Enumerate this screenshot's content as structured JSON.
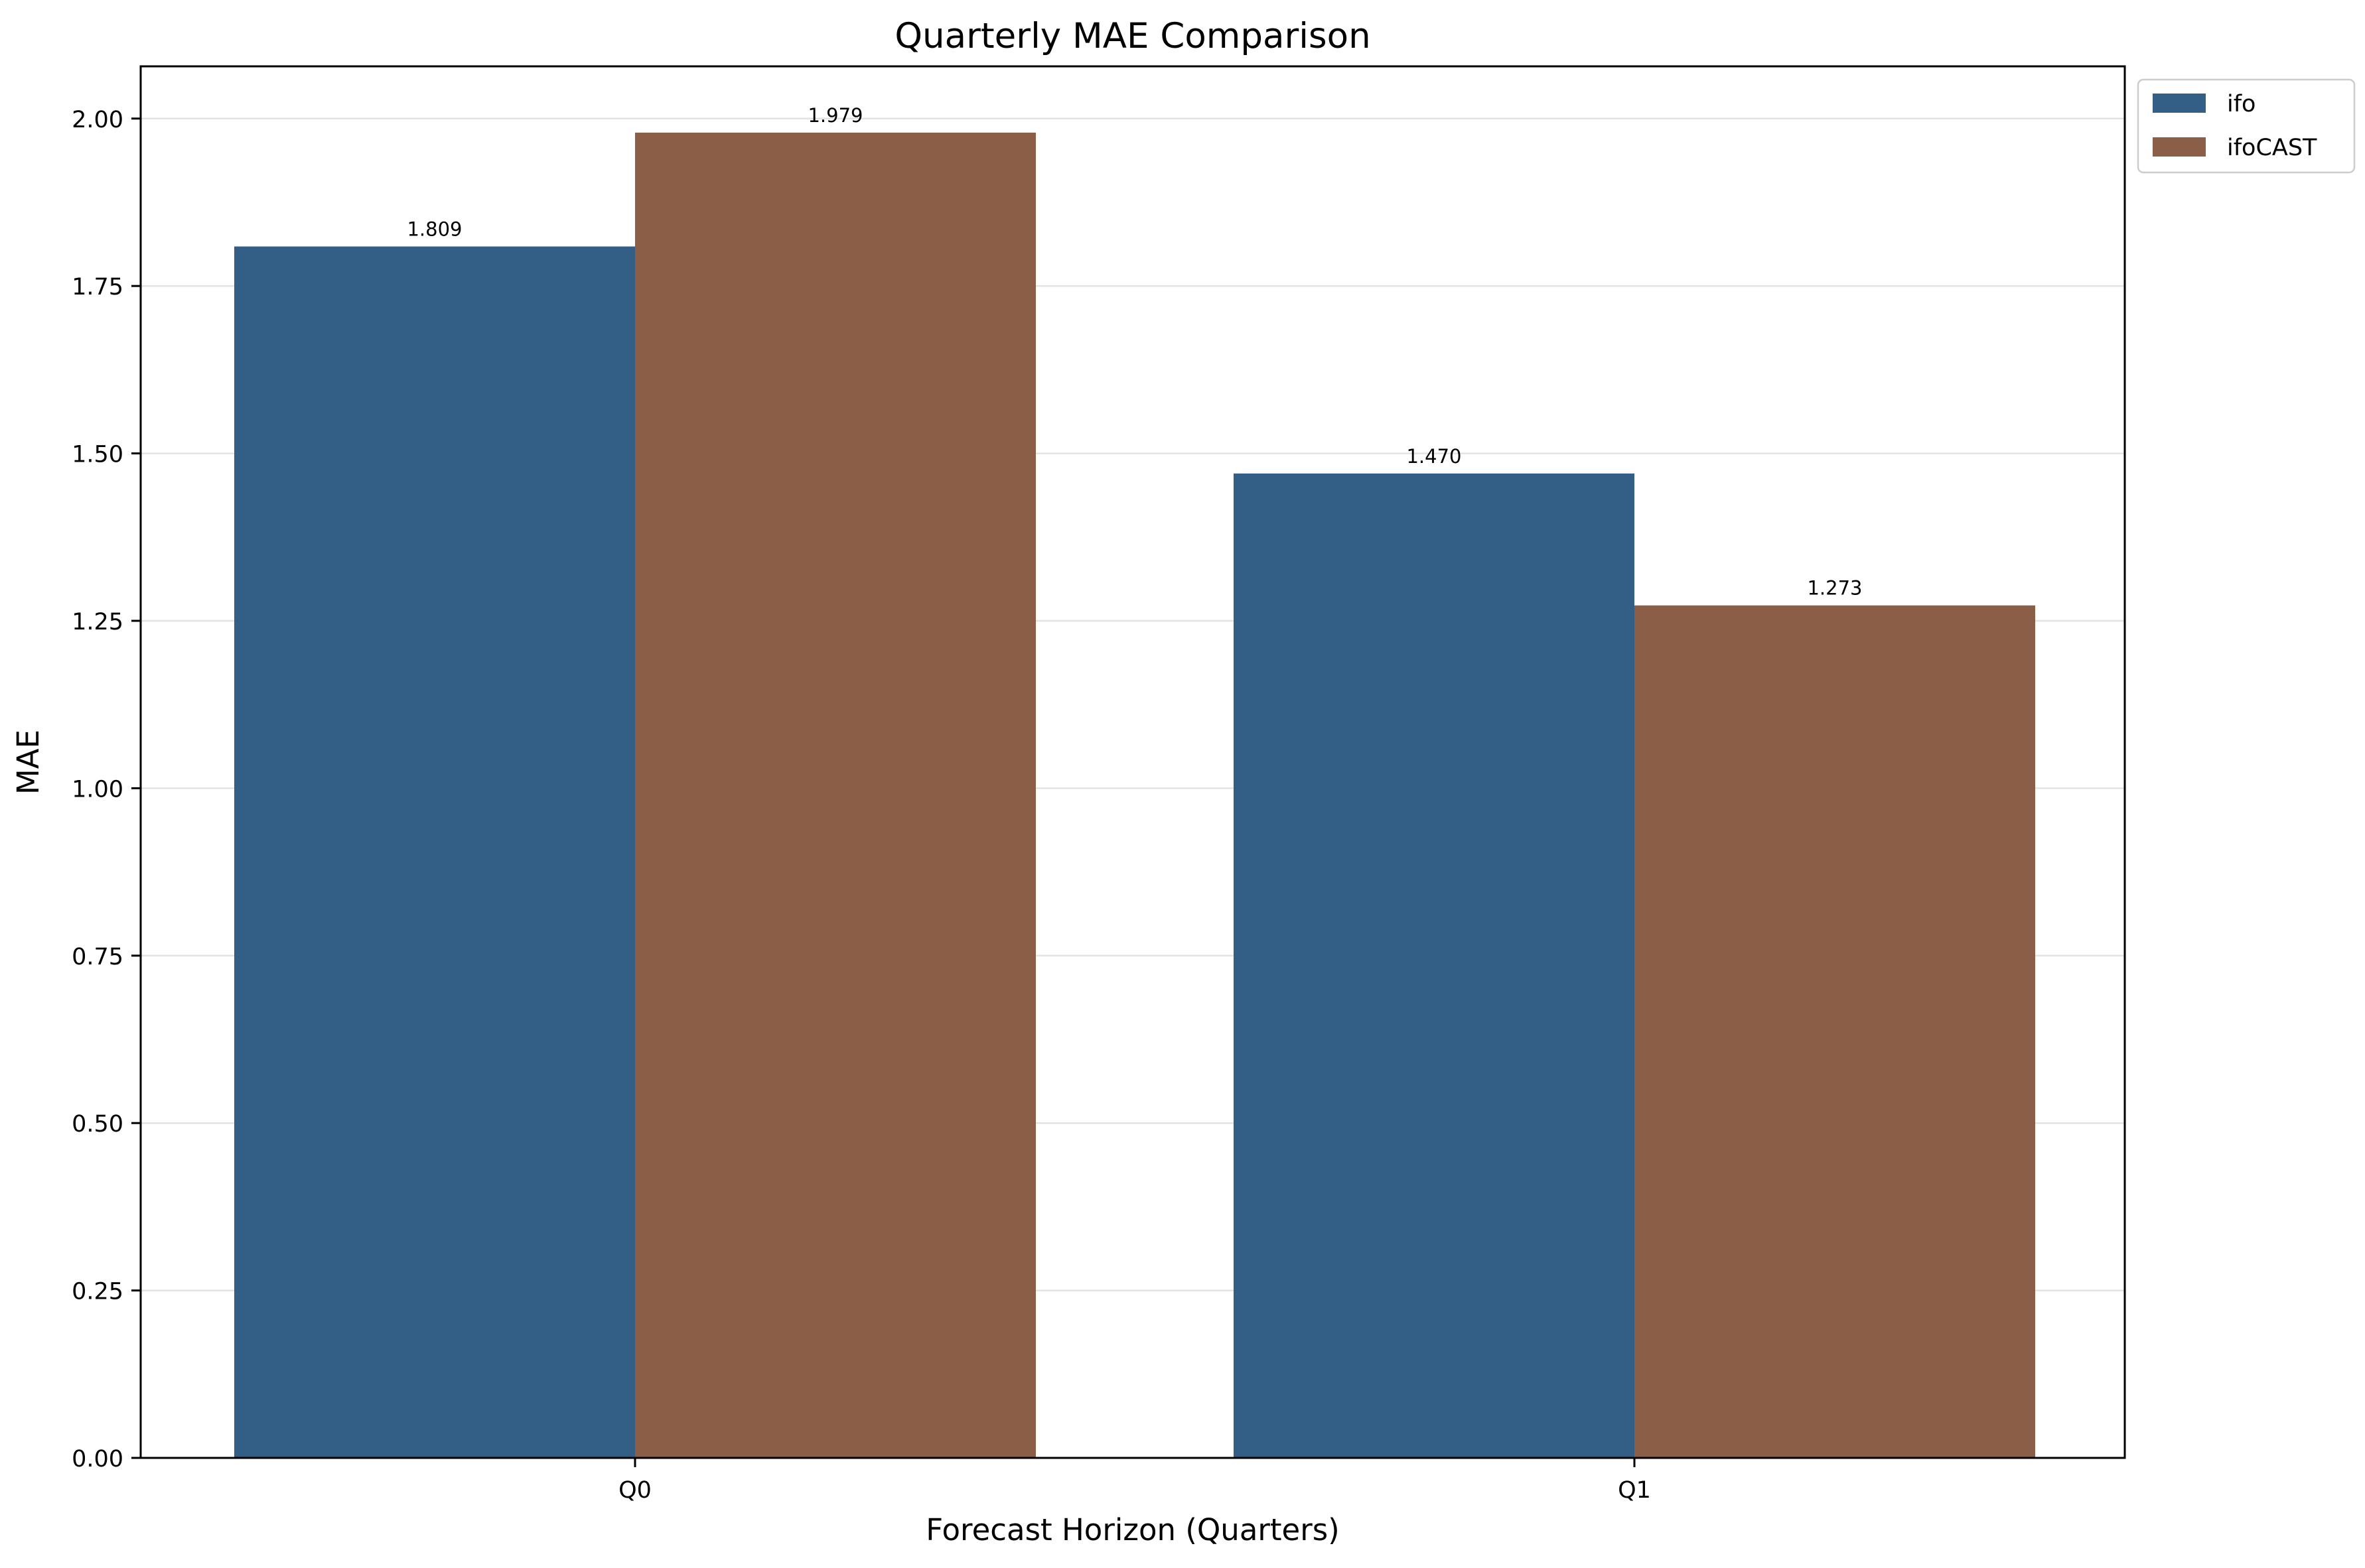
{
  "chart_data": {
    "type": "bar",
    "title": "Quarterly MAE Comparison",
    "xlabel": "Forecast Horizon (Quarters)",
    "ylabel": "MAE",
    "categories": [
      "Q0",
      "Q1"
    ],
    "series": [
      {
        "name": "ifo",
        "values": [
          1.809,
          1.47
        ],
        "labels": [
          "1.809",
          "1.470"
        ],
        "color": "#335e85"
      },
      {
        "name": "ifoCAST",
        "values": [
          1.979,
          1.273
        ],
        "labels": [
          "1.979",
          "1.273"
        ],
        "color": "#8b5e47"
      }
    ],
    "ylim": [
      0,
      2.078
    ],
    "yticks": [
      0.0,
      0.25,
      0.5,
      0.75,
      1.0,
      1.25,
      1.5,
      1.75,
      2.0
    ],
    "ytick_labels": [
      "0.00",
      "0.25",
      "0.50",
      "0.75",
      "1.00",
      "1.25",
      "1.50",
      "1.75",
      "2.00"
    ],
    "grid": "horizontal",
    "legend_position": "upper-right-outside",
    "colors": {
      "grid": "#e3e3e3",
      "axes": "#000000"
    }
  }
}
